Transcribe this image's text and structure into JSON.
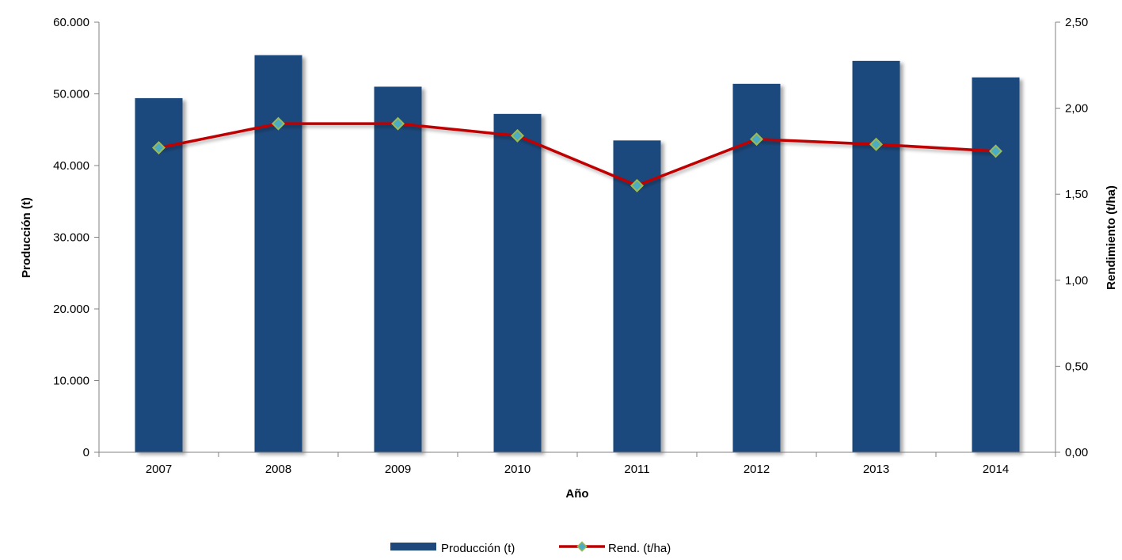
{
  "chart_data": {
    "type": "bar",
    "categories": [
      "2007",
      "2008",
      "2009",
      "2010",
      "2011",
      "2012",
      "2013",
      "2014"
    ],
    "series": [
      {
        "name": "Producción (t)",
        "type": "bar",
        "axis": "left",
        "color": "#1f497d",
        "values": [
          49400,
          55400,
          51000,
          47200,
          43500,
          51400,
          54600,
          52300
        ]
      },
      {
        "name": "Rend. (t/ha)",
        "type": "line",
        "axis": "right",
        "color": "#c00000",
        "marker_fill": "#4bacc6",
        "marker_stroke": "#9bbb59",
        "values": [
          1.77,
          1.91,
          1.91,
          1.84,
          1.55,
          1.82,
          1.79,
          1.75
        ]
      }
    ],
    "xlabel": "Año",
    "ylabel": "Producción (t)",
    "y2label": "Rendimiento (t/ha)",
    "ylim": [
      0,
      60000
    ],
    "y2lim": [
      0,
      2.5
    ],
    "yticks": [
      "0",
      "10.000",
      "20.000",
      "30.000",
      "40.000",
      "50.000",
      "60.000"
    ],
    "y2ticks": [
      "0,00",
      "0,50",
      "1,00",
      "1,50",
      "2,00",
      "2,50"
    ],
    "grid": false,
    "legend_position": "bottom"
  }
}
